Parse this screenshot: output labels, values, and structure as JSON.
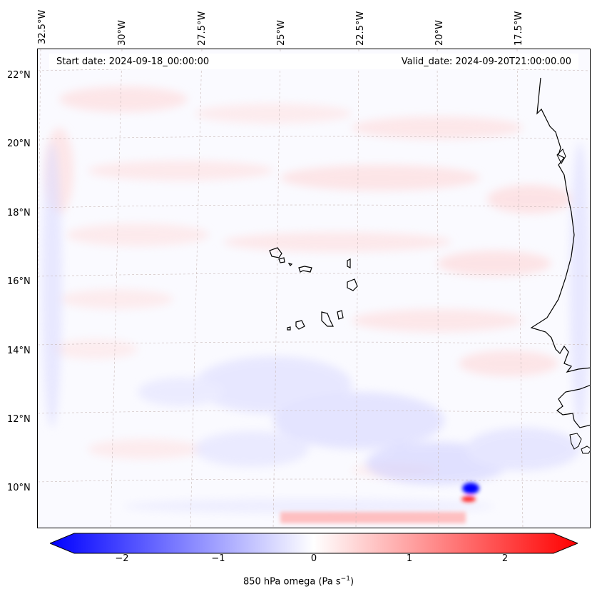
{
  "header": {
    "start_date": "Start date: 2024-09-18_00:00:00",
    "valid_date": "Valid_date: 2024-09-20T21:00:00.00"
  },
  "axes": {
    "lon_labels": [
      "32.5°W",
      "30°W",
      "27.5°W",
      "25°W",
      "22.5°W",
      "20°W",
      "17.5°W"
    ],
    "lat_labels": [
      "22°N",
      "20°N",
      "18°N",
      "16°N",
      "14°N",
      "12°N",
      "10°N"
    ]
  },
  "colorbar": {
    "label": "850 hPa omega (Pa s",
    "label_sup": "−1",
    "label_end": ")",
    "ticks": [
      "−2",
      "−1",
      "0",
      "1",
      "2"
    ],
    "range": [
      -2.75,
      2.75
    ],
    "tick_values": [
      -2,
      -1,
      0,
      1,
      2
    ],
    "colormap": "bwr",
    "low_color": "#0000ff",
    "mid_color": "#ffffff",
    "high_color": "#ff0000"
  },
  "map": {
    "projection": "Lambert conformal",
    "gridlines": "dashed",
    "coastline_color": "#000000",
    "field": "850 hPa omega"
  }
}
